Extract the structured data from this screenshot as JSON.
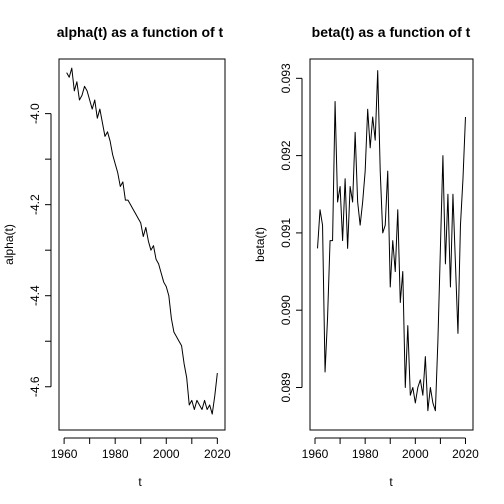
{
  "chart_data": [
    {
      "type": "line",
      "title": "alpha(t) as a function of t",
      "xlabel": "t",
      "ylabel": "alpha(t)",
      "xlim": [
        1958,
        2023
      ],
      "ylim": [
        -4.695,
        -3.88
      ],
      "x_ticks": [
        1960,
        1980,
        2000,
        2020
      ],
      "y_ticks": [
        -4.6,
        -4.4,
        -4.2,
        -4.0
      ],
      "x_tick_labels": [
        "1960",
        "1980",
        "2000",
        "2020"
      ],
      "y_tick_labels": [
        "-4.6",
        "-4.4",
        "-4.2",
        "-4.0"
      ],
      "color": "#000000",
      "x": [
        1961,
        1962,
        1963,
        1964,
        1965,
        1966,
        1967,
        1968,
        1969,
        1970,
        1971,
        1972,
        1973,
        1974,
        1975,
        1976,
        1977,
        1978,
        1979,
        1980,
        1981,
        1982,
        1983,
        1984,
        1985,
        1986,
        1987,
        1988,
        1989,
        1990,
        1991,
        1992,
        1993,
        1994,
        1995,
        1996,
        1997,
        1998,
        1999,
        2000,
        2001,
        2002,
        2003,
        2004,
        2005,
        2006,
        2007,
        2008,
        2009,
        2010,
        2011,
        2012,
        2013,
        2014,
        2015,
        2016,
        2017,
        2018,
        2019,
        2020
      ],
      "y": [
        -3.91,
        -3.92,
        -3.9,
        -3.95,
        -3.93,
        -3.97,
        -3.96,
        -3.94,
        -3.95,
        -3.97,
        -3.99,
        -3.97,
        -4.01,
        -3.99,
        -4.02,
        -4.05,
        -4.04,
        -4.06,
        -4.09,
        -4.11,
        -4.13,
        -4.16,
        -4.15,
        -4.19,
        -4.19,
        -4.2,
        -4.21,
        -4.22,
        -4.23,
        -4.24,
        -4.27,
        -4.25,
        -4.28,
        -4.3,
        -4.29,
        -4.32,
        -4.33,
        -4.35,
        -4.37,
        -4.38,
        -4.4,
        -4.45,
        -4.48,
        -4.49,
        -4.5,
        -4.51,
        -4.55,
        -4.58,
        -4.64,
        -4.63,
        -4.65,
        -4.63,
        -4.64,
        -4.65,
        -4.63,
        -4.65,
        -4.64,
        -4.66,
        -4.62,
        -4.57
      ]
    },
    {
      "type": "line",
      "title": "beta(t) as a function of t",
      "xlabel": "t",
      "ylabel": "beta(t)",
      "xlim": [
        1958,
        2023
      ],
      "ylim": [
        0.08845,
        0.09325
      ],
      "x_ticks": [
        1960,
        1980,
        2000,
        2020
      ],
      "y_ticks": [
        0.089,
        0.09,
        0.091,
        0.092,
        0.093
      ],
      "x_tick_labels": [
        "1960",
        "1980",
        "2000",
        "2020"
      ],
      "y_tick_labels": [
        "0.089",
        "0.090",
        "0.091",
        "0.092",
        "0.093"
      ],
      "color": "#000000",
      "x": [
        1961,
        1962,
        1963,
        1964,
        1965,
        1966,
        1967,
        1968,
        1969,
        1970,
        1971,
        1972,
        1973,
        1974,
        1975,
        1976,
        1977,
        1978,
        1979,
        1980,
        1981,
        1982,
        1983,
        1984,
        1985,
        1986,
        1987,
        1988,
        1989,
        1990,
        1991,
        1992,
        1993,
        1994,
        1995,
        1996,
        1997,
        1998,
        1999,
        2000,
        2001,
        2002,
        2003,
        2004,
        2005,
        2006,
        2007,
        2008,
        2009,
        2010,
        2011,
        2012,
        2013,
        2014,
        2015,
        2016,
        2017,
        2018,
        2019,
        2020
      ],
      "y": [
        0.0908,
        0.0913,
        0.0911,
        0.0892,
        0.0899,
        0.0909,
        0.0909,
        0.0927,
        0.0914,
        0.0916,
        0.0909,
        0.0917,
        0.0908,
        0.0916,
        0.0914,
        0.0923,
        0.0914,
        0.0911,
        0.0914,
        0.0918,
        0.0926,
        0.0921,
        0.0925,
        0.0922,
        0.0931,
        0.0918,
        0.091,
        0.0911,
        0.0918,
        0.0903,
        0.0909,
        0.0905,
        0.0913,
        0.0901,
        0.0905,
        0.089,
        0.0898,
        0.0889,
        0.089,
        0.0888,
        0.089,
        0.0891,
        0.0889,
        0.0894,
        0.0887,
        0.089,
        0.0888,
        0.0887,
        0.0896,
        0.0908,
        0.092,
        0.0906,
        0.0915,
        0.0903,
        0.0915,
        0.0906,
        0.0897,
        0.0911,
        0.0917,
        0.0925
      ]
    }
  ]
}
